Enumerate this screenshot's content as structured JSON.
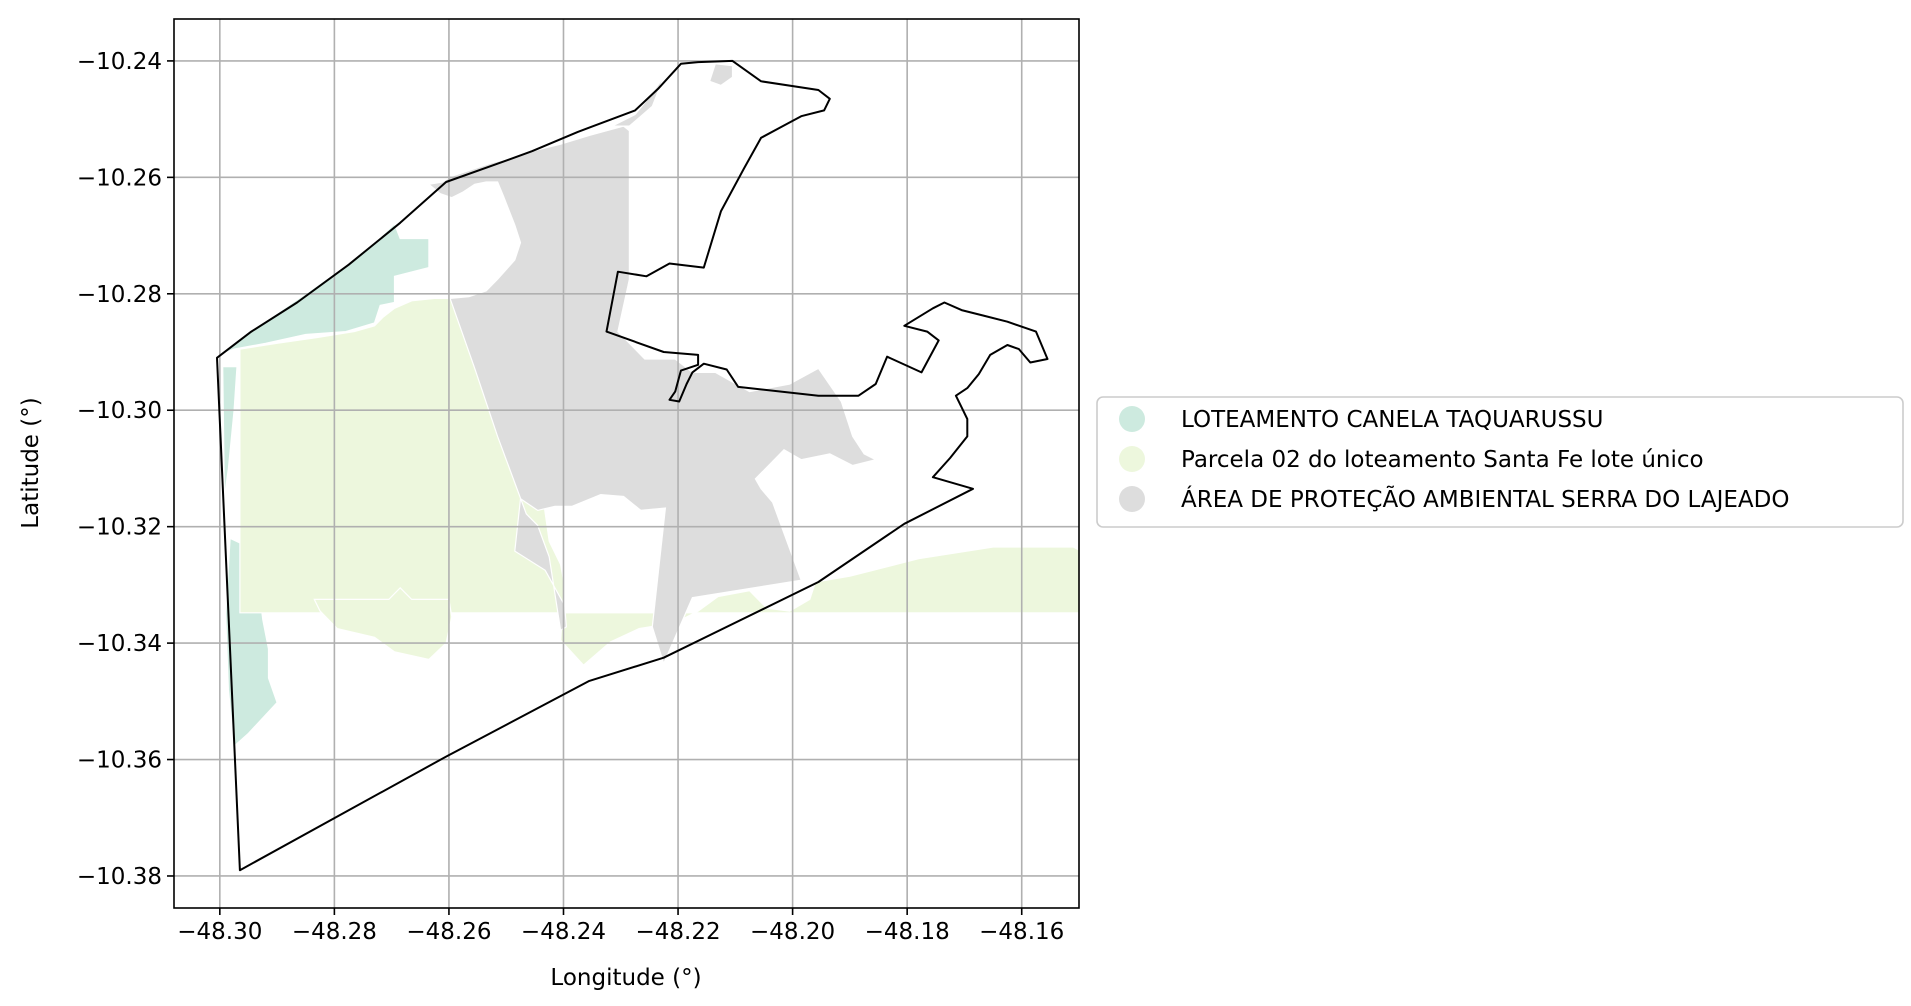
{
  "chart_data": {
    "type": "map",
    "xlabel": "Longitude (°)",
    "ylabel": "Latitude (°)",
    "xlim": [
      -48.308,
      -48.15
    ],
    "ylim": [
      -10.3855,
      -10.2328
    ],
    "grid": true,
    "legend_placement": "right",
    "x_ticks": [
      -48.3,
      -48.28,
      -48.26,
      -48.24,
      -48.22,
      -48.2,
      -48.18,
      -48.16
    ],
    "x_tick_labels": [
      "−48.30",
      "−48.28",
      "−48.26",
      "−48.24",
      "−48.22",
      "−48.20",
      "−48.18",
      "−48.16"
    ],
    "y_ticks": [
      -10.24,
      -10.26,
      -10.28,
      -10.3,
      -10.32,
      -10.34,
      -10.36,
      -10.38
    ],
    "y_tick_labels": [
      "−10.24",
      "−10.26",
      "−10.28",
      "−10.30",
      "−10.32",
      "−10.34",
      "−10.36",
      "−10.38"
    ],
    "layers": [
      {
        "name": "LOTEAMENTO CANELA TAQUARUSSU",
        "color": "#cdeadf",
        "polygons": [
          [
            [
              -48.3,
              -10.2905
            ],
            [
              -48.2975,
              -10.2895
            ],
            [
              -48.292,
              -10.2885
            ],
            [
              -48.285,
              -10.287
            ],
            [
              -48.278,
              -10.2865
            ],
            [
              -48.273,
              -10.285
            ],
            [
              -48.272,
              -10.282
            ],
            [
              -48.2695,
              -10.2815
            ],
            [
              -48.2695,
              -10.277
            ],
            [
              -48.2635,
              -10.2755
            ],
            [
              -48.2635,
              -10.2705
            ],
            [
              -48.2685,
              -10.2705
            ],
            [
              -48.2695,
              -10.268
            ],
            [
              -48.275,
              -10.273
            ],
            [
              -48.285,
              -10.28
            ],
            [
              -48.297,
              -10.288
            ]
          ],
          [
            [
              -48.2982,
              -10.322
            ],
            [
              -48.2965,
              -10.3228
            ],
            [
              -48.2945,
              -10.3235
            ],
            [
              -48.2935,
              -10.328
            ],
            [
              -48.2925,
              -10.336
            ],
            [
              -48.2915,
              -10.341
            ],
            [
              -48.2915,
              -10.346
            ],
            [
              -48.29,
              -10.3502
            ],
            [
              -48.295,
              -10.3555
            ],
            [
              -48.2975,
              -10.3577
            ],
            [
              -48.2985,
              -10.348
            ],
            [
              -48.299,
              -10.335
            ]
          ],
          [
            [
              -48.2995,
              -10.2925
            ],
            [
              -48.297,
              -10.2925
            ],
            [
              -48.2975,
              -10.3
            ],
            [
              -48.2985,
              -10.31
            ],
            [
              -48.2992,
              -10.315
            ]
          ]
        ]
      },
      {
        "name": "Parcela 02 do loteamento Santa Fe lote único",
        "color": "#edf7dd",
        "polygons": [
          [
            [
              -48.2965,
              -10.2895
            ],
            [
              -48.29,
              -10.2885
            ],
            [
              -48.283,
              -10.2875
            ],
            [
              -48.2765,
              -10.2865
            ],
            [
              -48.273,
              -10.2855
            ],
            [
              -48.2715,
              -10.284
            ],
            [
              -48.2695,
              -10.2825
            ],
            [
              -48.2665,
              -10.2812
            ],
            [
              -48.2625,
              -10.2808
            ],
            [
              -48.2595,
              -10.2808
            ],
            [
              -48.2565,
              -10.2805
            ],
            [
              -48.252,
              -10.292
            ],
            [
              -48.2475,
              -10.305
            ],
            [
              -48.2435,
              -10.3155
            ],
            [
              -48.2425,
              -10.3225
            ],
            [
              -48.2405,
              -10.3265
            ],
            [
              -48.2398,
              -10.3302
            ],
            [
              -48.2405,
              -10.3395
            ],
            [
              -48.2365,
              -10.3438
            ],
            [
              -48.2318,
              -10.3398
            ],
            [
              -48.2268,
              -10.3375
            ],
            [
              -48.2205,
              -10.3365
            ],
            [
              -48.2165,
              -10.3345
            ],
            [
              -48.213,
              -10.332
            ],
            [
              -48.2075,
              -10.331
            ],
            [
              -48.2045,
              -10.334
            ],
            [
              -48.2005,
              -10.3345
            ],
            [
              -48.197,
              -10.3325
            ],
            [
              -48.196,
              -10.3295
            ],
            [
              -48.19,
              -10.3285
            ],
            [
              -48.178,
              -10.3255
            ],
            [
              -48.165,
              -10.3235
            ],
            [
              -48.151,
              -10.3235
            ],
            [
              -48.13,
              -10.3348
            ],
            [
              -48.2965,
              -10.3348
            ]
          ],
          [
            [
              -48.2835,
              -10.3325
            ],
            [
              -48.2705,
              -10.3325
            ],
            [
              -48.2685,
              -10.3305
            ],
            [
              -48.2665,
              -10.3325
            ],
            [
              -48.26,
              -10.3325
            ],
            [
              -48.2595,
              -10.3355
            ],
            [
              -48.2605,
              -10.34
            ],
            [
              -48.2635,
              -10.3428
            ],
            [
              -48.2695,
              -10.3415
            ],
            [
              -48.273,
              -10.339
            ],
            [
              -48.2795,
              -10.3375
            ],
            [
              -48.2825,
              -10.3345
            ]
          ]
        ]
      },
      {
        "name": "ÁREA DE PROTEÇÃO AMBIENTAL SERRA DO LAJEADO",
        "color": "#dddddd",
        "polygons": [
          [
            [
              -48.2635,
              -10.2612
            ],
            [
              -48.2612,
              -10.2608
            ],
            [
              -48.2595,
              -10.2598
            ],
            [
              -48.2565,
              -10.2588
            ],
            [
              -48.2525,
              -10.2575
            ],
            [
              -48.2485,
              -10.2565
            ],
            [
              -48.2455,
              -10.2555
            ],
            [
              -48.2405,
              -10.2543
            ],
            [
              -48.2355,
              -10.2528
            ],
            [
              -48.2295,
              -10.2512
            ],
            [
              -48.2285,
              -10.252
            ],
            [
              -48.2285,
              -10.266
            ],
            [
              -48.2285,
              -10.2775
            ],
            [
              -48.2305,
              -10.2865
            ],
            [
              -48.2258,
              -10.2912
            ],
            [
              -48.2205,
              -10.2912
            ],
            [
              -48.2175,
              -10.2935
            ],
            [
              -48.2135,
              -10.2935
            ],
            [
              -48.2075,
              -10.2968
            ],
            [
              -48.2005,
              -10.2955
            ],
            [
              -48.1955,
              -10.2928
            ],
            [
              -48.1915,
              -10.2985
            ],
            [
              -48.1895,
              -10.3045
            ],
            [
              -48.1875,
              -10.3075
            ],
            [
              -48.1855,
              -10.3085
            ],
            [
              -48.1895,
              -10.3095
            ],
            [
              -48.1935,
              -10.3075
            ],
            [
              -48.1985,
              -10.3085
            ],
            [
              -48.2015,
              -10.3068
            ],
            [
              -48.2065,
              -10.3118
            ],
            [
              -48.2055,
              -10.3135
            ],
            [
              -48.2035,
              -10.3158
            ],
            [
              -48.1985,
              -10.3292
            ],
            [
              -48.2175,
              -10.3322
            ],
            [
              -48.2225,
              -10.3435
            ],
            [
              -48.2245,
              -10.3372
            ],
            [
              -48.2222,
              -10.3168
            ],
            [
              -48.2265,
              -10.3172
            ],
            [
              -48.2295,
              -10.3148
            ],
            [
              -48.2335,
              -10.3145
            ],
            [
              -48.2385,
              -10.3165
            ],
            [
              -48.2415,
              -10.3165
            ],
            [
              -48.2445,
              -10.3172
            ],
            [
              -48.2475,
              -10.3152
            ],
            [
              -48.2485,
              -10.3242
            ],
            [
              -48.2432,
              -10.3275
            ],
            [
              -48.2398,
              -10.3335
            ],
            [
              -48.2395,
              -10.3372
            ],
            [
              -48.2405,
              -10.3378
            ],
            [
              -48.2425,
              -10.3252
            ],
            [
              -48.2445,
              -10.3198
            ],
            [
              -48.2465,
              -10.3178
            ],
            [
              -48.2515,
              -10.3045
            ],
            [
              -48.2555,
              -10.2928
            ],
            [
              -48.2598,
              -10.2808
            ],
            [
              -48.2565,
              -10.2805
            ],
            [
              -48.2535,
              -10.2795
            ],
            [
              -48.2515,
              -10.2775
            ],
            [
              -48.2485,
              -10.2742
            ],
            [
              -48.2475,
              -10.2712
            ],
            [
              -48.2485,
              -10.2682
            ],
            [
              -48.2505,
              -10.2632
            ],
            [
              -48.2515,
              -10.2608
            ],
            [
              -48.2535,
              -10.2608
            ],
            [
              -48.2555,
              -10.2612
            ],
            [
              -48.2575,
              -10.2625
            ],
            [
              -48.2595,
              -10.2635
            ],
            [
              -48.2615,
              -10.2628
            ]
          ],
          [
            [
              -48.2225,
              -10.2428
            ],
            [
              -48.2255,
              -10.2468
            ],
            [
              -48.2275,
              -10.2492
            ],
            [
              -48.2315,
              -10.2512
            ],
            [
              -48.2285,
              -10.2512
            ],
            [
              -48.2245,
              -10.2478
            ]
          ],
          [
            [
              -48.2105,
              -10.2408
            ],
            [
              -48.2135,
              -10.2405
            ],
            [
              -48.2145,
              -10.2435
            ],
            [
              -48.2125,
              -10.2442
            ],
            [
              -48.2105,
              -10.2428
            ]
          ]
        ]
      }
    ],
    "boundary": [
      [
        -48.3005,
        -10.291
      ],
      [
        -48.2945,
        -10.2865
      ],
      [
        -48.2865,
        -10.2815
      ],
      [
        -48.2775,
        -10.275
      ],
      [
        -48.2685,
        -10.2678
      ],
      [
        -48.2605,
        -10.2608
      ],
      [
        -48.2525,
        -10.258
      ],
      [
        -48.2455,
        -10.2555
      ],
      [
        -48.2375,
        -10.2522
      ],
      [
        -48.2275,
        -10.2485
      ],
      [
        -48.2235,
        -10.2448
      ],
      [
        -48.2195,
        -10.2405
      ],
      [
        -48.2165,
        -10.2402
      ],
      [
        -48.2105,
        -10.24
      ],
      [
        -48.2055,
        -10.2435
      ],
      [
        -48.1955,
        -10.245
      ],
      [
        -48.1935,
        -10.2465
      ],
      [
        -48.1945,
        -10.2485
      ],
      [
        -48.1985,
        -10.2495
      ],
      [
        -48.2055,
        -10.2532
      ],
      [
        -48.2085,
        -10.2585
      ],
      [
        -48.2125,
        -10.2658
      ],
      [
        -48.2155,
        -10.2755
      ],
      [
        -48.2215,
        -10.2748
      ],
      [
        -48.2255,
        -10.277
      ],
      [
        -48.2305,
        -10.2762
      ],
      [
        -48.2325,
        -10.2865
      ],
      [
        -48.2225,
        -10.29
      ],
      [
        -48.2165,
        -10.2905
      ],
      [
        -48.2165,
        -10.2922
      ],
      [
        -48.2195,
        -10.2932
      ],
      [
        -48.2205,
        -10.2968
      ],
      [
        -48.2215,
        -10.2982
      ],
      [
        -48.2198,
        -10.2985
      ],
      [
        -48.2185,
        -10.2955
      ],
      [
        -48.2175,
        -10.2935
      ],
      [
        -48.2155,
        -10.292
      ],
      [
        -48.2115,
        -10.293
      ],
      [
        -48.2095,
        -10.296
      ],
      [
        -48.1955,
        -10.2975
      ],
      [
        -48.1885,
        -10.2975
      ],
      [
        -48.1855,
        -10.2955
      ],
      [
        -48.1835,
        -10.2908
      ],
      [
        -48.1775,
        -10.2935
      ],
      [
        -48.1745,
        -10.288
      ],
      [
        -48.1765,
        -10.2865
      ],
      [
        -48.1805,
        -10.2855
      ],
      [
        -48.1755,
        -10.2825
      ],
      [
        -48.1735,
        -10.2815
      ],
      [
        -48.1705,
        -10.2828
      ],
      [
        -48.1665,
        -10.2838
      ],
      [
        -48.1625,
        -10.2848
      ],
      [
        -48.1575,
        -10.2865
      ],
      [
        -48.1555,
        -10.2912
      ],
      [
        -48.1585,
        -10.2918
      ],
      [
        -48.1605,
        -10.2895
      ],
      [
        -48.1625,
        -10.2888
      ],
      [
        -48.1655,
        -10.2905
      ],
      [
        -48.1675,
        -10.2938
      ],
      [
        -48.1695,
        -10.2962
      ],
      [
        -48.1715,
        -10.2975
      ],
      [
        -48.1705,
        -10.2995
      ],
      [
        -48.1695,
        -10.3015
      ],
      [
        -48.1695,
        -10.3045
      ],
      [
        -48.1725,
        -10.3082
      ],
      [
        -48.1755,
        -10.3115
      ],
      [
        -48.1685,
        -10.3135
      ],
      [
        -48.1805,
        -10.3195
      ],
      [
        -48.1955,
        -10.3295
      ],
      [
        -48.2225,
        -10.3425
      ],
      [
        -48.2355,
        -10.3465
      ],
      [
        -48.2605,
        -10.3595
      ],
      [
        -48.2965,
        -10.379
      ],
      [
        -48.3005,
        -10.291
      ]
    ]
  }
}
